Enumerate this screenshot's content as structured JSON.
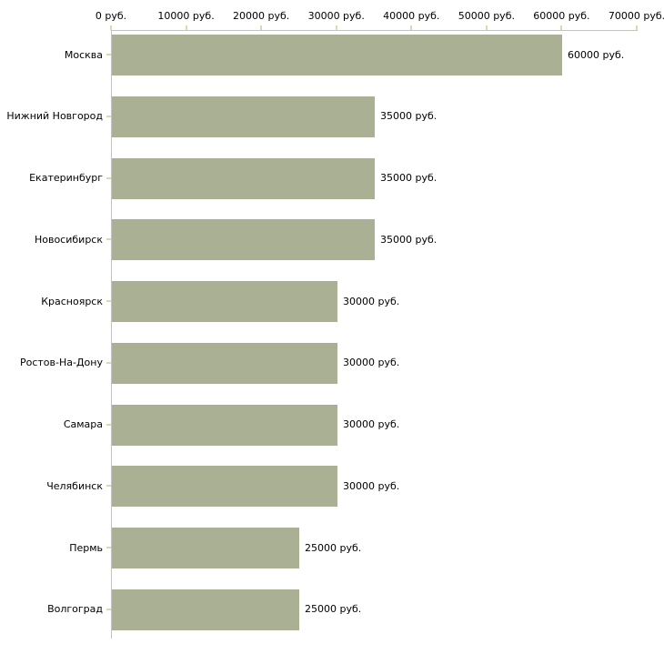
{
  "chart_data": {
    "type": "bar",
    "orientation": "horizontal",
    "title": "",
    "xlabel": "",
    "ylabel": "",
    "categories": [
      "Москва",
      "Нижний Новгород",
      "Екатеринбург",
      "Новосибирск",
      "Красноярск",
      "Ростов-На-Дону",
      "Самара",
      "Челябинск",
      "Пермь",
      "Волгоград"
    ],
    "values": [
      60000,
      35000,
      35000,
      35000,
      30000,
      30000,
      30000,
      30000,
      25000,
      25000
    ],
    "value_labels": [
      "60000 руб.",
      "35000 руб.",
      "35000 руб.",
      "35000 руб.",
      "30000 руб.",
      "30000 руб.",
      "30000 руб.",
      "30000 руб.",
      "25000 руб.",
      "25000 руб."
    ],
    "x_tick_values": [
      0,
      10000,
      20000,
      30000,
      40000,
      50000,
      60000,
      70000
    ],
    "x_tick_labels": [
      "0 руб.",
      "10000 руб.",
      "20000 руб.",
      "30000 руб.",
      "40000 руб.",
      "50000 руб.",
      "60000 руб.",
      "70000 руб."
    ],
    "xlim": [
      0,
      70000
    ],
    "grid": false,
    "legend": false,
    "colors": {
      "bar": "#aab094",
      "axis_line": "#c3c3c3",
      "tick_mark": "#d8dbb0",
      "text": "#000000",
      "background": "#ffffff"
    }
  }
}
